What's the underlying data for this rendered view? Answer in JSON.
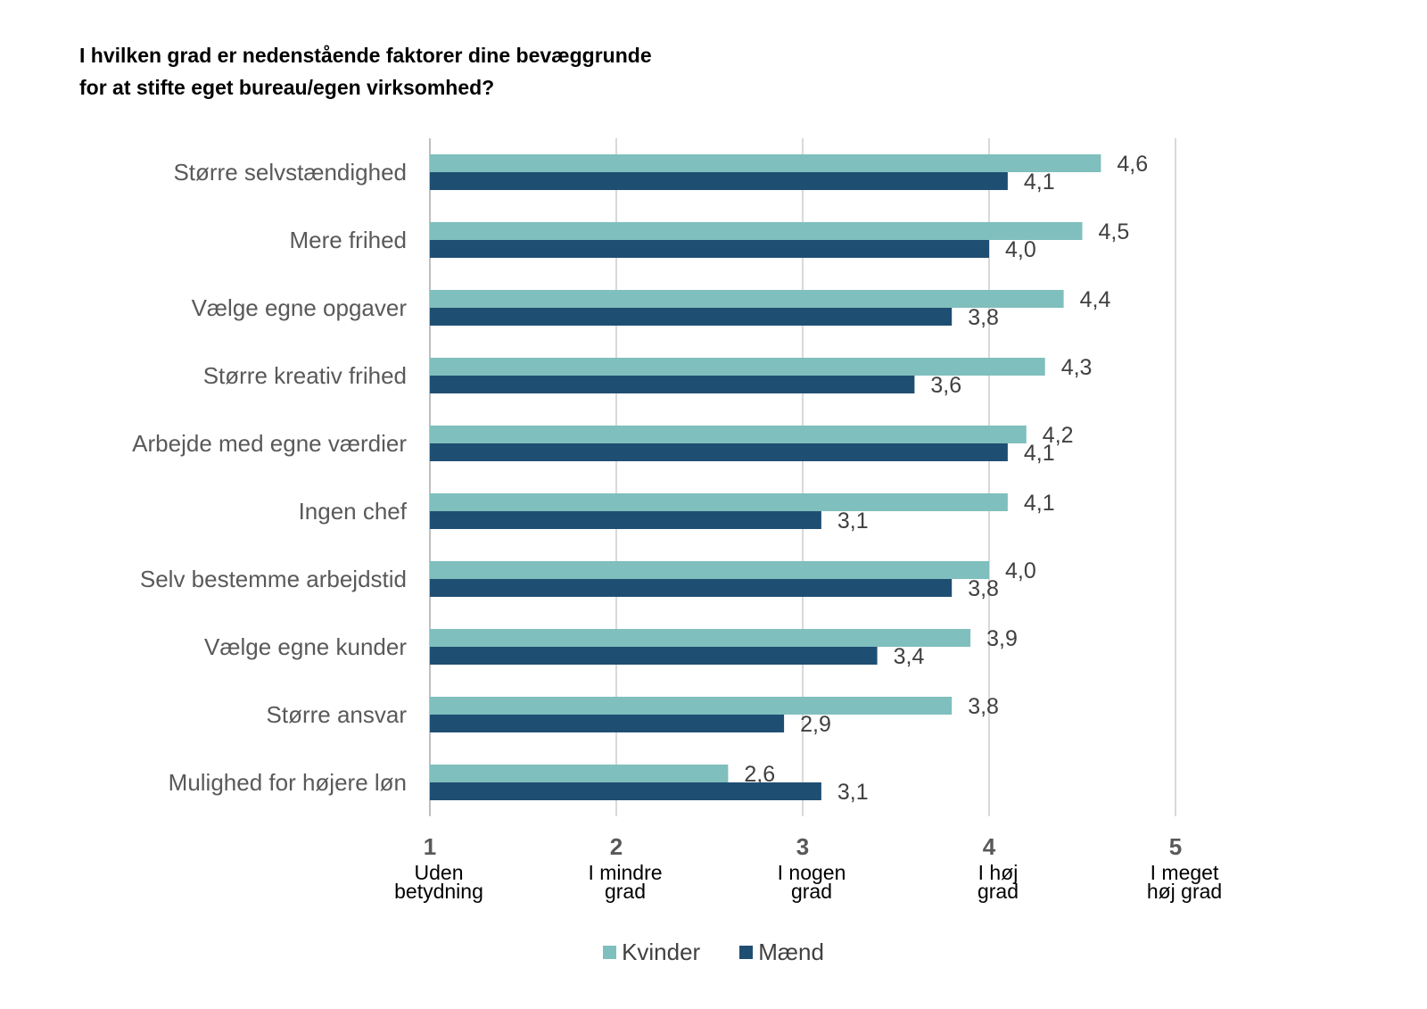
{
  "chart_data": {
    "type": "bar",
    "orientation": "horizontal",
    "title_lines": [
      "I hvilken grad er nedenstående faktorer dine bevæggrunde",
      "for at stifte eget bureau/egen virksomhed?"
    ],
    "categories": [
      "Større selvstændighed",
      "Mere frihed",
      "Vælge egne opgaver",
      "Større kreativ frihed",
      "Arbejde med egne værdier",
      "Ingen chef",
      "Selv bestemme arbejdstid",
      "Vælge egne kunder",
      "Større ansvar",
      "Mulighed for højere løn"
    ],
    "series": [
      {
        "name": "Kvinder",
        "color": "#7fbfbd",
        "values": [
          4.6,
          4.5,
          4.4,
          4.3,
          4.2,
          4.1,
          4.0,
          3.9,
          3.8,
          2.6
        ],
        "labels": [
          "4,6",
          "4,5",
          "4,4",
          "4,3",
          "4,2",
          "4,1",
          "4,0",
          "3,9",
          "3,8",
          "2,6"
        ]
      },
      {
        "name": "Mænd",
        "color": "#1f4e73",
        "values": [
          4.1,
          4.0,
          3.8,
          3.6,
          4.1,
          3.1,
          3.8,
          3.4,
          2.9,
          3.1
        ],
        "labels": [
          "4,1",
          "4,0",
          "3,8",
          "3,6",
          "4,1",
          "3,1",
          "3,8",
          "3,4",
          "2,9",
          "3,1"
        ]
      }
    ],
    "xlim": [
      1,
      5
    ],
    "x_ticks": [
      {
        "value": 1,
        "number": "1",
        "lines": [
          "Uden",
          "betydning"
        ]
      },
      {
        "value": 2,
        "number": "2",
        "lines": [
          "I mindre",
          "grad"
        ]
      },
      {
        "value": 3,
        "number": "3",
        "lines": [
          "I nogen",
          "grad"
        ]
      },
      {
        "value": 4,
        "number": "4",
        "lines": [
          "I høj",
          "grad"
        ]
      },
      {
        "value": 5,
        "number": "5",
        "lines": [
          "I meget",
          "høj grad"
        ]
      }
    ],
    "grid": true,
    "legend_position": "bottom"
  }
}
